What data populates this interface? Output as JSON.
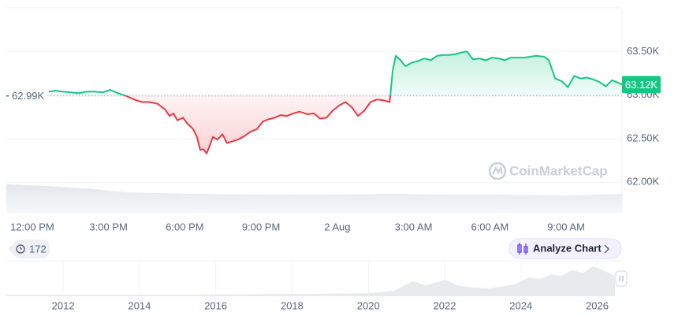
{
  "chart_data": {
    "type": "line",
    "x": [
      0.65,
      0.9,
      1.21,
      1.52,
      1.83,
      2.14,
      2.45,
      2.76,
      3.07,
      3.38,
      3.69,
      4.0,
      4.31,
      4.62,
      4.93,
      5.24,
      5.4,
      5.55,
      5.71,
      5.93,
      6.11,
      6.33,
      6.48,
      6.61,
      6.73,
      6.86,
      6.98,
      7.11,
      7.29,
      7.48,
      7.66,
      7.88,
      8.1,
      8.35,
      8.59,
      8.84,
      9.09,
      9.28,
      9.53,
      9.77,
      10.02,
      10.27,
      10.52,
      10.83,
      11.08,
      11.32,
      11.57,
      11.82,
      12.07,
      12.32,
      12.57,
      12.81,
      13.06,
      13.31,
      13.56,
      13.81,
      14.06,
      14.18,
      14.3,
      14.49,
      14.68,
      14.92,
      15.17,
      15.42,
      15.67,
      15.92,
      16.17,
      16.41,
      16.66,
      16.91,
      17.1,
      17.34,
      17.59,
      17.84,
      18.09,
      18.34,
      18.59,
      18.83,
      19.08,
      19.33,
      19.58,
      19.83,
      20.14,
      20.32,
      20.57,
      20.82,
      21.07,
      21.32,
      21.57,
      21.82,
      22.06,
      22.31,
      22.56,
      22.81,
      23.05,
      23.21
    ],
    "values": [
      63040,
      63050,
      63040,
      63030,
      63020,
      63040,
      63040,
      63030,
      63060,
      63020,
      62990,
      62950,
      62920,
      62920,
      62900,
      62830,
      62760,
      62790,
      62710,
      62740,
      62670,
      62610,
      62520,
      62370,
      62380,
      62330,
      62420,
      62520,
      62490,
      62550,
      62450,
      62470,
      62490,
      62530,
      62580,
      62610,
      62700,
      62720,
      62740,
      62770,
      62760,
      62790,
      62810,
      62780,
      62790,
      62730,
      62740,
      62820,
      62880,
      62920,
      62860,
      62760,
      62820,
      62920,
      62950,
      62940,
      62920,
      63280,
      63450,
      63400,
      63330,
      63370,
      63390,
      63420,
      63400,
      63450,
      63460,
      63460,
      63470,
      63490,
      63500,
      63410,
      63420,
      63400,
      63430,
      63420,
      63400,
      63430,
      63430,
      63430,
      63440,
      63450,
      63440,
      63400,
      63190,
      63160,
      63090,
      63220,
      63190,
      63200,
      63180,
      63150,
      63100,
      63170,
      63140,
      63120
    ],
    "up_color": "#16c784",
    "down_color": "#ea3943",
    "baseline": {
      "value": 62990,
      "label": "62.99K"
    },
    "current": {
      "value": 63120,
      "label": "63.12K"
    },
    "xlim": [
      -1.02,
      23.2
    ],
    "xticks": [
      {
        "value": 0,
        "label": "12:00 PM"
      },
      {
        "value": 3,
        "label": "3:00 PM"
      },
      {
        "value": 6,
        "label": "6:00 PM"
      },
      {
        "value": 9,
        "label": "9:00 PM"
      },
      {
        "value": 12,
        "label": "2 Aug"
      },
      {
        "value": 15,
        "label": "3:00 AM"
      },
      {
        "value": 18,
        "label": "6:00 AM"
      },
      {
        "value": 21,
        "label": "9:00 AM"
      }
    ],
    "ylim": [
      61650,
      64000
    ],
    "yticks": [
      {
        "value": 62000,
        "label": "62.00K"
      },
      {
        "value": 62500,
        "label": "62.50K"
      },
      {
        "value": 63000,
        "label": "63.00K"
      },
      {
        "value": 63500,
        "label": "63.50K"
      }
    ],
    "grid": true,
    "watermark": "CoinMarketCap",
    "overview": {
      "xlim": [
        2010.51,
        2026.65
      ],
      "xticks": [
        2012,
        2014,
        2016,
        2018,
        2020,
        2022,
        2024,
        2026
      ]
    }
  },
  "controls": {
    "history_count": "172",
    "analyze_button": "Analyze Chart"
  }
}
